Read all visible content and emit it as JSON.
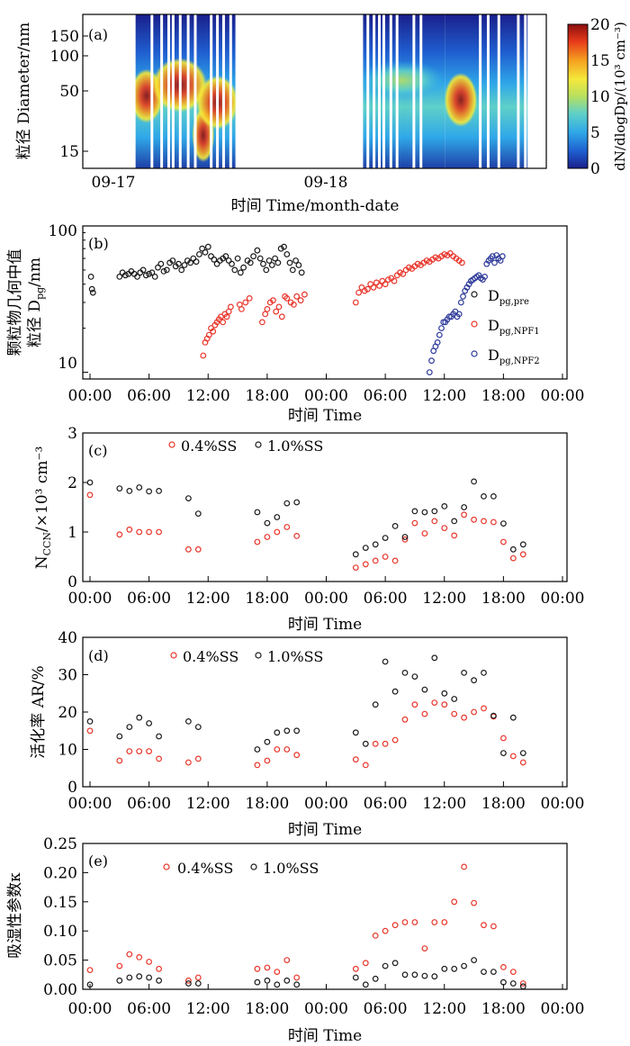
{
  "panels": {
    "a": {
      "label": "(a)",
      "ylabel": "粒径 Diameter/nm",
      "xlabel": "时间 Time/month-date",
      "yticks": [
        "150",
        "100",
        "50",
        "15"
      ],
      "xticks": [
        "09-17",
        "09-18"
      ],
      "colorbar": {
        "label": "dN/dlogDp/(10³ cm⁻³)",
        "ticks": [
          "20",
          "15",
          "10",
          "5",
          "0"
        ],
        "colors": [
          "#1a1f8c",
          "#1f5fd0",
          "#2fa7e8",
          "#5fd0c8",
          "#b8e060",
          "#f5e83a",
          "#f5a020",
          "#e83a1a",
          "#8c0f0f"
        ]
      }
    },
    "b": {
      "label": "(b)",
      "ylabel": "颗粒物几何中值 粒径 D_pg/nm",
      "ylabel_line1": "颗粒物几何中值",
      "ylabel_line2": "粒径 D",
      "ylabel_sub": "pg",
      "ylabel_tail": "/nm",
      "xlabel": "时间 Time",
      "yticks": [
        "100",
        "10"
      ]
    },
    "c": {
      "label": "(c)",
      "ylabel": "N_CCN/×10³ cm⁻³",
      "ylabel_N": "N",
      "ylabel_sub": "CCN",
      "ylabel_tail": "/×10³ cm⁻³",
      "xlabel": "时间 Time",
      "yticks": [
        "3",
        "2",
        "1",
        "0"
      ]
    },
    "d": {
      "label": "(d)",
      "ylabel": "活化率 AR/%",
      "xlabel": "时间 Time",
      "yticks": [
        "40",
        "30",
        "20",
        "10",
        "0"
      ]
    },
    "e": {
      "label": "(e)",
      "ylabel": "吸湿性参数κ",
      "xlabel": "时间 Time",
      "yticks": [
        "0.25",
        "0.20",
        "0.15",
        "0.10",
        "0.05",
        "0.00"
      ]
    }
  },
  "time_ticks": [
    "00:00",
    "06:00",
    "12:00",
    "18:00",
    "00:00",
    "06:00",
    "12:00",
    "18:00",
    "00:00"
  ],
  "legend_b": {
    "pre_main": "D",
    "pre_sub": "pg,pre",
    "npf1_main": "D",
    "npf1_sub": "pg,NPF1",
    "npf2_main": "D",
    "npf2_sub": "pg,NPF2"
  },
  "legend_ss": {
    "s1": "0.4%SS",
    "s2": "1.0%SS"
  },
  "colors": {
    "black": "#1a1a1a",
    "red": "#e8352a",
    "blue": "#2e3a9a",
    "axis": "#000000"
  },
  "chart_data": [
    {
      "type": "heatmap",
      "panel": "a",
      "title": "",
      "xlabel": "时间 Time/month-date",
      "ylabel": "粒径 Diameter/nm",
      "ylim": [
        12,
        200
      ],
      "colorbar_range": [
        0,
        20
      ],
      "colorbar_label": "dN/dlogDp/(10³ cm⁻³)",
      "xlim_hours": [
        0,
        48
      ],
      "data_gaps_hours": [
        [
          13.8,
          28.2
        ]
      ],
      "modes": [
        {
          "t_start": 2.5,
          "t_end": 5.0,
          "diameter_nm": 45,
          "intensity": 20
        },
        {
          "t_start": 5.0,
          "t_end": 10.0,
          "diameter_nm": 55,
          "intensity": 14
        },
        {
          "t_start": 9.5,
          "t_end": 10.8,
          "diameter_nm": 22,
          "intensity": 17
        },
        {
          "t_start": 10.0,
          "t_end": 13.5,
          "diameter_nm": 40,
          "intensity": 15
        },
        {
          "t_start": 28.2,
          "t_end": 37.0,
          "diameter_nm": 60,
          "intensity": 9
        },
        {
          "t_start": 38.0,
          "t_end": 40.5,
          "diameter_nm": 42,
          "intensity": 19
        }
      ]
    },
    {
      "type": "scatter",
      "panel": "b",
      "title": "",
      "xlabel": "时间 Time",
      "ylabel": "颗粒物几何中值 粒径 D_pg/nm",
      "ylim": [
        9,
        100
      ],
      "yscale": "log",
      "x_unit": "hours from 00:00 day 1",
      "series": [
        {
          "name": "D_pg,pre",
          "color": "black",
          "x": [
            0.1,
            0.2,
            0.3,
            3.0,
            3.3,
            3.6,
            3.9,
            4.2,
            4.5,
            4.8,
            5.1,
            5.4,
            5.7,
            6.0,
            6.3,
            6.6,
            6.9,
            7.2,
            7.5,
            7.8,
            8.1,
            8.4,
            8.7,
            9.0,
            9.3,
            9.6,
            9.9,
            10.2,
            10.5,
            10.8,
            11.1,
            11.4,
            11.7,
            12.0,
            12.3,
            12.6,
            12.9,
            13.2,
            13.5,
            13.8,
            14.1,
            14.4,
            14.7,
            15.0,
            15.3,
            15.6,
            16.0,
            16.3,
            16.6,
            17.0,
            17.3,
            17.6,
            17.9,
            18.2,
            18.5,
            18.8,
            19.1,
            19.4,
            19.7,
            20.0,
            20.3,
            20.6,
            20.9,
            21.2,
            21.5
          ],
          "y": [
            45,
            37,
            35,
            45,
            48,
            46,
            47,
            49,
            47,
            45,
            48,
            50,
            46,
            47,
            48,
            45,
            52,
            55,
            49,
            50,
            56,
            58,
            53,
            55,
            50,
            54,
            58,
            56,
            60,
            57,
            64,
            70,
            66,
            72,
            62,
            59,
            55,
            58,
            60,
            62,
            58,
            55,
            50,
            60,
            48,
            52,
            58,
            56,
            62,
            68,
            60,
            55,
            50,
            58,
            54,
            60,
            56,
            70,
            72,
            64,
            56,
            50,
            58,
            54,
            48
          ]
        },
        {
          "name": "D_pg,NPF1",
          "color": "red",
          "x": [
            11.5,
            11.7,
            11.9,
            12.1,
            12.3,
            12.5,
            12.7,
            12.9,
            13.1,
            13.3,
            13.5,
            13.7,
            13.9,
            14.1,
            14.3,
            15.2,
            15.4,
            15.8,
            16.2,
            17.5,
            17.8,
            18.0,
            18.3,
            18.6,
            18.9,
            19.2,
            19.5,
            19.8,
            20.0,
            20.4,
            20.7,
            21.0,
            21.4,
            21.8,
            27.0,
            27.3,
            27.6,
            27.9,
            28.2,
            28.5,
            28.8,
            29.1,
            29.4,
            29.7,
            30.0,
            30.3,
            30.6,
            30.9,
            31.2,
            31.5,
            31.8,
            32.1,
            32.4,
            32.7,
            33.0,
            33.3,
            33.6,
            33.9,
            34.2,
            34.5,
            34.8,
            35.1,
            35.4,
            35.7,
            36.0,
            36.3,
            36.6,
            36.9,
            37.2,
            37.5,
            37.8
          ],
          "y": [
            13,
            16,
            17,
            18,
            20,
            19,
            21,
            22,
            23,
            24,
            22,
            25,
            24,
            26,
            28,
            29,
            27,
            30,
            32,
            22,
            25,
            27,
            30,
            31,
            26,
            28,
            24,
            33,
            32,
            30,
            29,
            33,
            31,
            34,
            30,
            35,
            38,
            36,
            37,
            40,
            38,
            41,
            39,
            42,
            40,
            43,
            44,
            42,
            46,
            48,
            47,
            50,
            52,
            51,
            53,
            55,
            54,
            56,
            58,
            57,
            59,
            61,
            60,
            62,
            64,
            63,
            65,
            62,
            60,
            58,
            56
          ]
        },
        {
          "name": "D_pg,NPF2",
          "color": "blue",
          "x": [
            34.5,
            34.7,
            34.9,
            35.1,
            35.3,
            35.5,
            35.7,
            35.9,
            36.1,
            36.3,
            36.5,
            36.7,
            36.9,
            37.1,
            37.3,
            37.5,
            37.7,
            37.9,
            38.1,
            38.3,
            38.5,
            38.7,
            38.9,
            39.1,
            39.3,
            39.5,
            39.7,
            39.9,
            40.1,
            40.3,
            40.5,
            40.7,
            40.9,
            41.1,
            41.3,
            41.5,
            41.7,
            41.9
          ],
          "y": [
            10,
            12,
            14,
            15,
            16,
            18,
            20,
            22,
            22,
            23,
            24,
            24,
            25,
            26,
            24,
            25,
            30,
            33,
            36,
            38,
            40,
            42,
            43,
            44,
            45,
            46,
            44,
            43,
            45,
            55,
            58,
            60,
            62,
            56,
            63,
            60,
            58,
            62
          ]
        }
      ]
    },
    {
      "type": "scatter",
      "panel": "c",
      "title": "",
      "xlabel": "时间 Time",
      "ylabel": "N_CCN/×10³ cm⁻³",
      "ylim": [
        0,
        3
      ],
      "x_unit": "hours from 00:00 day 1",
      "series": [
        {
          "name": "0.4%SS",
          "color": "red",
          "x": [
            0,
            3,
            4,
            5,
            6,
            7,
            10,
            11,
            17,
            18,
            19,
            20,
            21,
            27,
            28,
            29,
            30,
            31,
            32,
            33,
            34,
            35,
            36,
            37,
            38,
            39,
            40,
            41,
            42,
            43,
            44
          ],
          "y": [
            1.75,
            0.95,
            1.05,
            1.0,
            1.0,
            1.0,
            0.65,
            0.65,
            0.8,
            0.9,
            1.0,
            1.1,
            0.92,
            0.28,
            0.35,
            0.42,
            0.5,
            0.42,
            0.85,
            1.18,
            0.97,
            1.22,
            1.08,
            0.93,
            1.35,
            1.25,
            1.22,
            1.2,
            0.8,
            0.47,
            0.55
          ]
        },
        {
          "name": "1.0%SS",
          "color": "black",
          "x": [
            0,
            3,
            4,
            5,
            6,
            7,
            10,
            11,
            17,
            18,
            19,
            20,
            21,
            27,
            28,
            29,
            30,
            31,
            32,
            33,
            34,
            35,
            36,
            37,
            38,
            39,
            40,
            41,
            42,
            43,
            44
          ],
          "y": [
            2.0,
            1.88,
            1.83,
            1.9,
            1.82,
            1.83,
            1.68,
            1.37,
            1.4,
            1.18,
            1.3,
            1.58,
            1.6,
            0.55,
            0.68,
            0.75,
            0.88,
            1.12,
            0.9,
            1.42,
            1.4,
            1.42,
            1.52,
            1.22,
            1.5,
            2.02,
            1.72,
            1.72,
            1.17,
            0.65,
            0.75
          ]
        }
      ]
    },
    {
      "type": "scatter",
      "panel": "d",
      "title": "",
      "xlabel": "时间 Time",
      "ylabel": "活化率 AR/%",
      "ylim": [
        0,
        40
      ],
      "x_unit": "hours from 00:00 day 1",
      "series": [
        {
          "name": "0.4%SS",
          "color": "red",
          "x": [
            0,
            3,
            4,
            5,
            6,
            7,
            10,
            11,
            17,
            18,
            19,
            20,
            21,
            27,
            28,
            29,
            30,
            31,
            32,
            33,
            34,
            35,
            36,
            37,
            38,
            39,
            40,
            41,
            42,
            43,
            44
          ],
          "y": [
            15,
            7,
            9.5,
            9.5,
            9.5,
            7.5,
            6.5,
            7.5,
            5.8,
            7,
            10,
            10,
            8.5,
            7.3,
            5.8,
            11.5,
            11.5,
            12.5,
            18,
            22,
            19.5,
            22.5,
            22,
            19.5,
            18.5,
            20,
            21,
            18.8,
            13,
            8.2,
            6.5
          ]
        },
        {
          "name": "1.0%SS",
          "color": "black",
          "x": [
            0,
            3,
            4,
            5,
            6,
            7,
            10,
            11,
            17,
            18,
            19,
            20,
            21,
            27,
            28,
            29,
            30,
            31,
            32,
            33,
            34,
            35,
            36,
            37,
            38,
            39,
            40,
            41,
            42,
            43,
            44
          ],
          "y": [
            17.5,
            13.5,
            16,
            18.5,
            17,
            13.5,
            17.5,
            16,
            10,
            12,
            14.5,
            15,
            15,
            14.5,
            11.5,
            22,
            33.5,
            25.5,
            30.5,
            29.5,
            26,
            34.5,
            25,
            23.5,
            30.5,
            28.5,
            30.5,
            19,
            9,
            18.5,
            9
          ]
        }
      ]
    },
    {
      "type": "scatter",
      "panel": "e",
      "title": "",
      "xlabel": "时间 Time",
      "ylabel": "吸湿性参数κ",
      "ylim": [
        0,
        0.25
      ],
      "x_unit": "hours from 00:00 day 1",
      "series": [
        {
          "name": "0.4%SS",
          "color": "red",
          "x": [
            0,
            3,
            4,
            5,
            6,
            7,
            10,
            11,
            17,
            18,
            19,
            20,
            21,
            27,
            28,
            29,
            30,
            31,
            32,
            33,
            34,
            35,
            36,
            37,
            38,
            39,
            40,
            41,
            42,
            43,
            44
          ],
          "y": [
            0.033,
            0.04,
            0.06,
            0.055,
            0.047,
            0.035,
            0.015,
            0.02,
            0.035,
            0.037,
            0.03,
            0.05,
            0.02,
            0.035,
            0.045,
            0.092,
            0.1,
            0.11,
            0.115,
            0.115,
            0.07,
            0.115,
            0.115,
            0.15,
            0.21,
            0.148,
            0.11,
            0.108,
            0.038,
            0.03,
            0.01
          ]
        },
        {
          "name": "1.0%SS",
          "color": "black",
          "x": [
            0,
            3,
            4,
            5,
            6,
            7,
            10,
            11,
            17,
            18,
            19,
            20,
            21,
            27,
            28,
            29,
            30,
            31,
            32,
            33,
            34,
            35,
            36,
            37,
            38,
            39,
            40,
            41,
            42,
            43,
            44
          ],
          "y": [
            0.008,
            0.015,
            0.02,
            0.022,
            0.02,
            0.015,
            0.01,
            0.01,
            0.012,
            0.015,
            0.008,
            0.015,
            0.008,
            0.02,
            0.008,
            0.018,
            0.04,
            0.045,
            0.025,
            0.025,
            0.023,
            0.022,
            0.035,
            0.035,
            0.04,
            0.05,
            0.03,
            0.03,
            0.012,
            0.01,
            0.005
          ]
        }
      ]
    }
  ]
}
